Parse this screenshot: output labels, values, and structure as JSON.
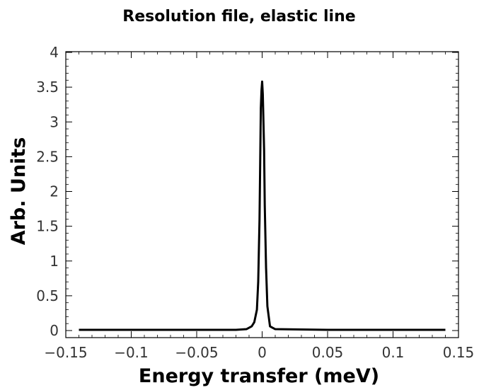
{
  "chart_data": {
    "type": "line",
    "title": "Resolution file, elastic line",
    "xlabel": "Energy transfer (meV)",
    "ylabel": "Arb. Units",
    "xlim": [
      -0.15,
      0.15
    ],
    "ylim": [
      0,
      4
    ],
    "x_ticks": [
      -0.15,
      -0.1,
      -0.05,
      0,
      0.05,
      0.1,
      0.15
    ],
    "x_tick_labels": [
      "−0.15",
      "−0.1",
      "−0.05",
      "0",
      "0.05",
      "0.1",
      "0.15"
    ],
    "y_ticks": [
      0,
      0.5,
      1,
      1.5,
      2,
      2.5,
      3,
      3.5,
      4
    ],
    "y_tick_labels": [
      "0",
      "0.5",
      "1",
      "1.5",
      "2",
      "2.5",
      "3",
      "3.5",
      "4"
    ],
    "grid": false,
    "line_color": "#000000",
    "series": [
      {
        "x": [
          -0.14,
          -0.1,
          -0.05,
          -0.02,
          -0.012,
          -0.008,
          -0.006,
          -0.004,
          -0.003,
          -0.002,
          -0.0015,
          -0.001,
          -0.0005,
          0,
          0.0005,
          0.001,
          0.0015,
          0.002,
          0.003,
          0.004,
          0.006,
          0.01,
          0.05,
          0.1,
          0.14
        ],
        "y": [
          0.01,
          0.01,
          0.01,
          0.01,
          0.02,
          0.06,
          0.12,
          0.3,
          0.7,
          1.6,
          2.4,
          3.2,
          3.45,
          3.58,
          3.4,
          3.0,
          2.6,
          1.8,
          0.9,
          0.35,
          0.06,
          0.02,
          0.01,
          0.01,
          0.01
        ]
      }
    ]
  }
}
